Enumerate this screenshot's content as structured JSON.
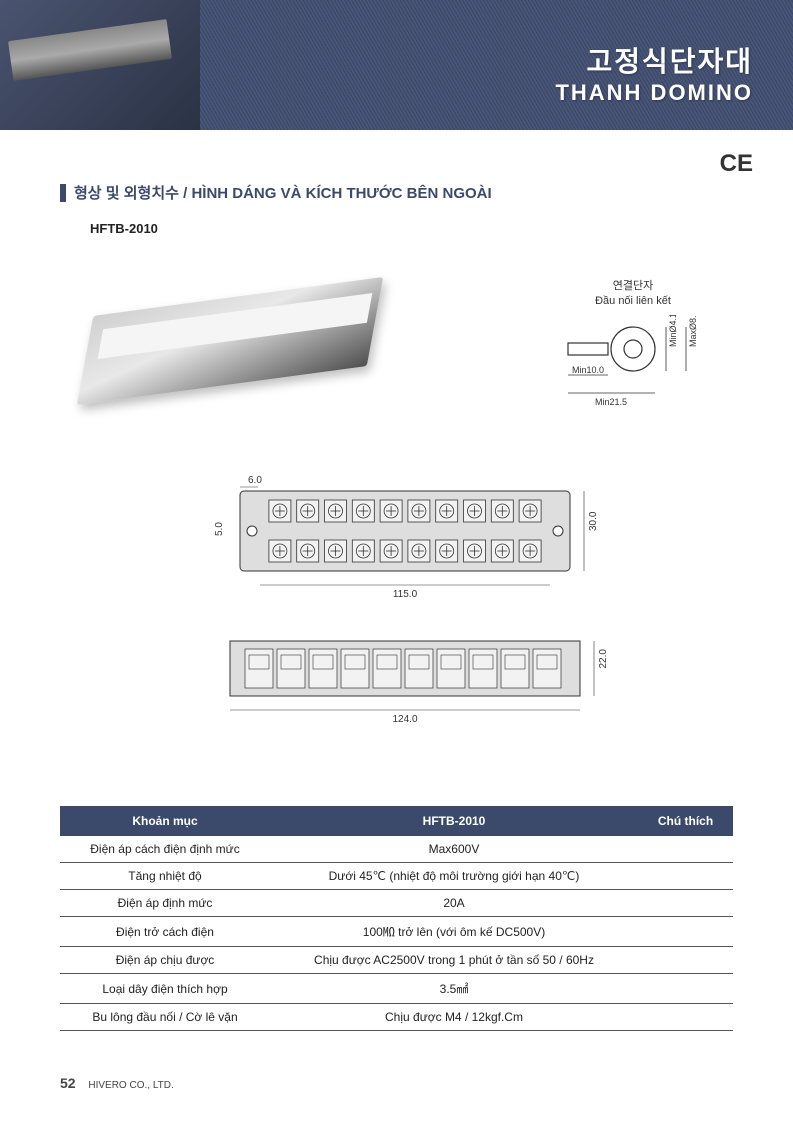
{
  "banner": {
    "title_ko": "고정식단자대",
    "title_en": "THANH DOMINO"
  },
  "ce_mark": "CE",
  "section": {
    "heading": "형상 및 외형치수 / HÌNH DÁNG VÀ KÍCH THƯỚC BÊN NGOÀI",
    "model": "HFTB-2010"
  },
  "connector": {
    "label_ko": "연결단자",
    "label_vi": "Đầu nối liên kết",
    "dimensions": {
      "shaft_min": "Min10.0",
      "total_min": "Min21.5",
      "hole_min": "MinØ4.1",
      "outer_max": "MaxØ8.3"
    },
    "stroke": "#333333"
  },
  "top_view": {
    "dim_left": "6.0",
    "dim_side": "5.0",
    "dim_width": "115.0",
    "dim_height": "30.0",
    "terminal_count": 10,
    "body_color": "#dedede",
    "stroke": "#333333"
  },
  "side_view": {
    "dim_width": "124.0",
    "dim_height": "22.0",
    "terminal_count": 10,
    "body_color": "#dedede",
    "stroke": "#333333"
  },
  "table": {
    "headers": {
      "item": "Khoản mục",
      "model": "HFTB-2010",
      "note": "Chú thích"
    },
    "rows": [
      {
        "item": "Điện áp cách điện định mức",
        "value": "Max600V",
        "note": ""
      },
      {
        "item": "Tăng nhiệt độ",
        "value": "Dưới 45℃ (nhiệt độ môi trường giới hạn 40℃)",
        "note": ""
      },
      {
        "item": "Điện áp định mức",
        "value": "20A",
        "note": ""
      },
      {
        "item": "Điện trở cách điện",
        "value": "100㏁ trở lên (với ôm kế DC500V)",
        "note": ""
      },
      {
        "item": "Điện áp chịu được",
        "value": "Chịu được AC2500V trong 1 phút ở tần số 50 / 60Hz",
        "note": ""
      },
      {
        "item": "Loại dây điện thích hợp",
        "value": "3.5㎟",
        "note": ""
      },
      {
        "item": "Bu lông đầu nối / Cờ lê vặn",
        "value": "Chịu được M4 / 12kgf.Cm",
        "note": ""
      }
    ],
    "header_bg": "#3b4a6b",
    "header_color": "#ffffff",
    "border_color": "#555555"
  },
  "footer": {
    "page": "52",
    "company": "HIVERO CO., LTD."
  }
}
